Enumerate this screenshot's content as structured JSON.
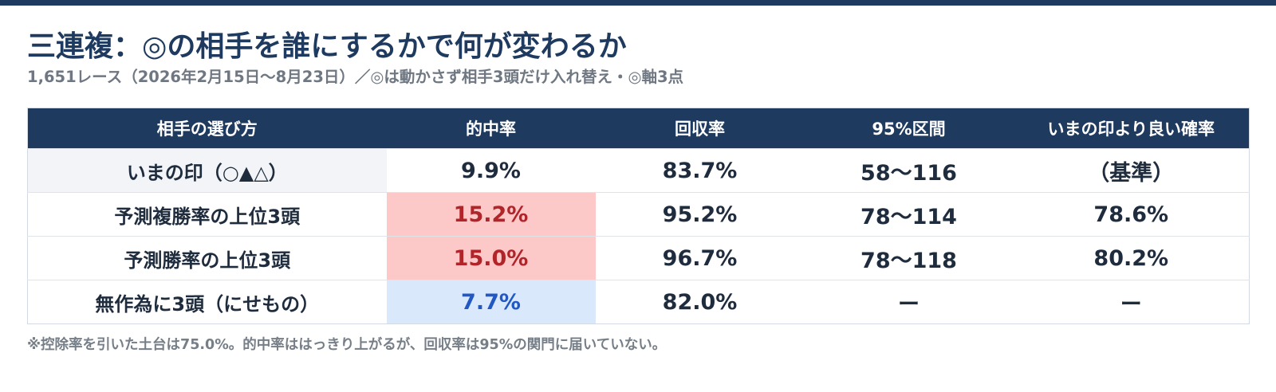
{
  "title": "三連複：◎の相手を誰にするかで何が変わるか",
  "subtitle": "1,651レース（2026年2月15日〜8月23日）／◎は動かさず相手3頭だけ入れ替え・◎軸3点",
  "table": {
    "headers": [
      "相手の選び方",
      "的中率",
      "回収率",
      "95%区間",
      "いまの印より良い確率"
    ],
    "rows": [
      {
        "method": "いまの印（○▲△）",
        "hit_rate": "9.9%",
        "return_rate": "83.7%",
        "ci95": "58〜116",
        "better_prob": "（基準）"
      },
      {
        "method": "予測複勝率の上位3頭",
        "hit_rate": "15.2%",
        "return_rate": "95.2%",
        "ci95": "78〜114",
        "better_prob": "78.6%"
      },
      {
        "method": "予測勝率の上位3頭",
        "hit_rate": "15.0%",
        "return_rate": "96.7%",
        "ci95": "78〜118",
        "better_prob": "80.2%"
      },
      {
        "method": "無作為に3頭（にせもの）",
        "hit_rate": "7.7%",
        "return_rate": "82.0%",
        "ci95": "ー",
        "better_prob": "ー"
      }
    ]
  },
  "footnote": "※控除率を引いた土台は75.0%。的中率ははっきり上がるが、回収率は95%の関門に届いていない。",
  "colors": {
    "header_bg": "#1f3a5f",
    "hit_high_bg": "#fdc8c8",
    "hit_high_text": "#b0242a",
    "hit_low_bg": "#d9e8fb",
    "hit_low_text": "#2258c4",
    "baseline_label_bg": "#f2f4f7"
  }
}
